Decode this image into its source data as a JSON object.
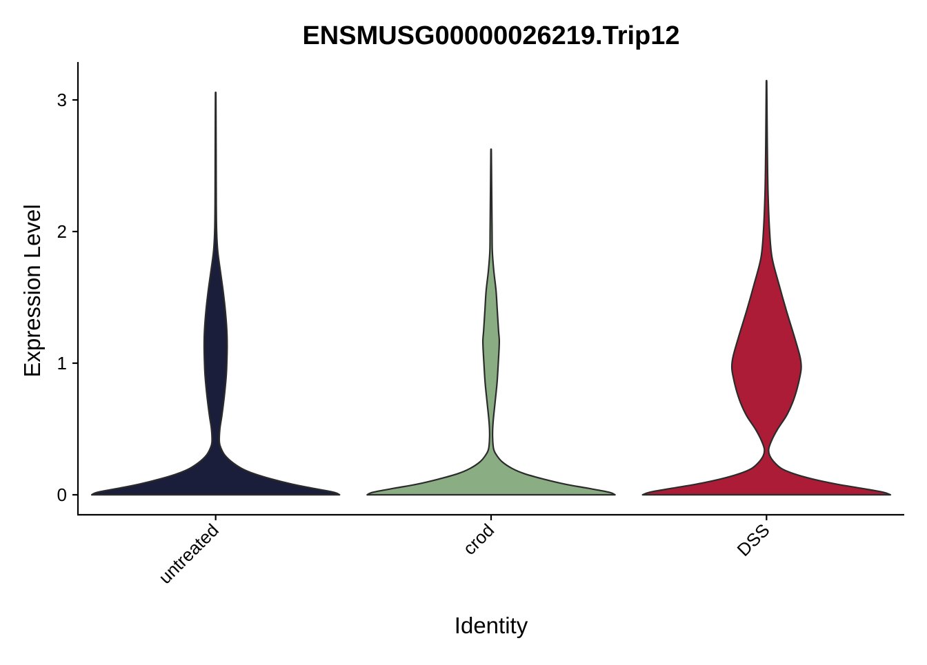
{
  "chart_data": {
    "type": "violin",
    "title": "ENSMUSG00000026219.Trip12",
    "xlabel": "Identity",
    "ylabel": "Expression Level",
    "ylim": [
      -0.15,
      3.3
    ],
    "yticks": [
      0,
      1,
      2,
      3
    ],
    "grid": false,
    "legend": "none",
    "categories": [
      "untreated",
      "crod",
      "DSS"
    ],
    "series": [
      {
        "category": "untreated",
        "color": "#1b1e3a",
        "min": 0,
        "max": 3.04,
        "density_profile": [
          [
            0.0,
            1.0
          ],
          [
            0.02,
            0.95
          ],
          [
            0.05,
            0.78
          ],
          [
            0.08,
            0.62
          ],
          [
            0.12,
            0.45
          ],
          [
            0.16,
            0.31
          ],
          [
            0.2,
            0.21
          ],
          [
            0.25,
            0.13
          ],
          [
            0.3,
            0.075
          ],
          [
            0.35,
            0.045
          ],
          [
            0.4,
            0.03
          ],
          [
            0.5,
            0.034
          ],
          [
            0.6,
            0.05
          ],
          [
            0.75,
            0.07
          ],
          [
            0.9,
            0.085
          ],
          [
            1.0,
            0.09
          ],
          [
            1.13,
            0.093
          ],
          [
            1.25,
            0.09
          ],
          [
            1.4,
            0.078
          ],
          [
            1.55,
            0.06
          ],
          [
            1.7,
            0.038
          ],
          [
            1.85,
            0.017
          ],
          [
            2.0,
            0.008
          ],
          [
            2.2,
            0.005
          ],
          [
            2.5,
            0.004
          ],
          [
            2.8,
            0.003
          ],
          [
            3.04,
            0.002
          ]
        ]
      },
      {
        "category": "crod",
        "color": "#8aad84",
        "min": 0,
        "max": 2.61,
        "density_profile": [
          [
            0.0,
            1.0
          ],
          [
            0.02,
            0.95
          ],
          [
            0.05,
            0.78
          ],
          [
            0.08,
            0.6
          ],
          [
            0.12,
            0.42
          ],
          [
            0.16,
            0.27
          ],
          [
            0.2,
            0.17
          ],
          [
            0.25,
            0.09
          ],
          [
            0.3,
            0.045
          ],
          [
            0.35,
            0.02
          ],
          [
            0.45,
            0.012
          ],
          [
            0.55,
            0.016
          ],
          [
            0.7,
            0.032
          ],
          [
            0.85,
            0.048
          ],
          [
            1.0,
            0.058
          ],
          [
            1.12,
            0.065
          ],
          [
            1.18,
            0.066
          ],
          [
            1.25,
            0.06
          ],
          [
            1.4,
            0.05
          ],
          [
            1.55,
            0.04
          ],
          [
            1.7,
            0.022
          ],
          [
            1.85,
            0.01
          ],
          [
            2.0,
            0.008
          ],
          [
            2.2,
            0.006
          ],
          [
            2.4,
            0.004
          ],
          [
            2.61,
            0.002
          ]
        ]
      },
      {
        "category": "DSS",
        "color": "#ad1c36",
        "min": 0,
        "max": 3.13,
        "density_profile": [
          [
            0.0,
            1.0
          ],
          [
            0.02,
            0.94
          ],
          [
            0.05,
            0.76
          ],
          [
            0.08,
            0.57
          ],
          [
            0.12,
            0.37
          ],
          [
            0.16,
            0.22
          ],
          [
            0.2,
            0.12
          ],
          [
            0.25,
            0.06
          ],
          [
            0.3,
            0.025
          ],
          [
            0.35,
            0.018
          ],
          [
            0.42,
            0.045
          ],
          [
            0.5,
            0.09
          ],
          [
            0.6,
            0.16
          ],
          [
            0.7,
            0.21
          ],
          [
            0.8,
            0.245
          ],
          [
            0.9,
            0.27
          ],
          [
            0.97,
            0.28
          ],
          [
            1.05,
            0.27
          ],
          [
            1.2,
            0.225
          ],
          [
            1.4,
            0.16
          ],
          [
            1.6,
            0.1
          ],
          [
            1.8,
            0.045
          ],
          [
            2.0,
            0.025
          ],
          [
            2.3,
            0.012
          ],
          [
            2.6,
            0.007
          ],
          [
            2.9,
            0.004
          ],
          [
            3.13,
            0.002
          ]
        ]
      }
    ]
  }
}
